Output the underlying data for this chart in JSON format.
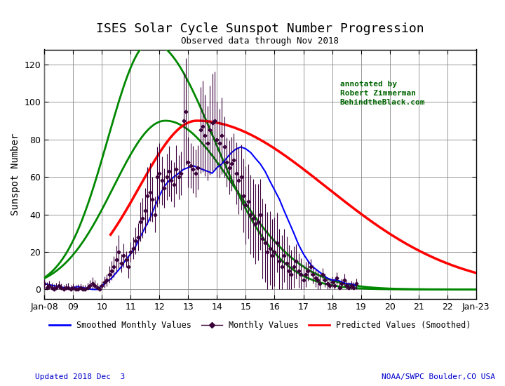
{
  "title": "ISES Solar Cycle Sunspot Number Progression",
  "subtitle": "Observed data through Nov 2018",
  "xlabel_ticks": [
    "Jan-08",
    "09",
    "10",
    "11",
    "12",
    "13",
    "14",
    "15",
    "16",
    "17",
    "18",
    "19",
    "20",
    "21",
    "22",
    "Jan-23"
  ],
  "ylabel": "Sunspot Number",
  "ylim": [
    -5,
    128
  ],
  "annotation": "annotated by\nRobert Zimmerman\nBehindtheBlack.com",
  "annotation_color": "#006400",
  "footer_left": "Updated 2018 Dec  3",
  "footer_right": "NOAA/SWPC Boulder,CO USA",
  "footer_color": "#0000cc",
  "legend_items": [
    {
      "label": "Smoothed Monthly Values",
      "color": "blue"
    },
    {
      "label": "Monthly Values",
      "color": "#500050"
    },
    {
      "label": "Predicted Values (Smoothed)",
      "color": "red"
    }
  ],
  "bg_color": "#ffffff",
  "grid_color": "#888888",
  "title_fontsize": 13,
  "subtitle_fontsize": 9,
  "axis_fontsize": 9
}
